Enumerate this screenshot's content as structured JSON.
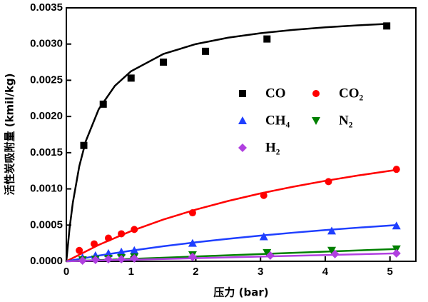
{
  "chart_data": {
    "type": "scatter",
    "x_label": "压力 (bar)",
    "y_label": "活性炭吸附量 (kmil/kg)",
    "xlim": [
      0,
      5.4
    ],
    "xticks": [
      0,
      1,
      2,
      3,
      4,
      5
    ],
    "ylim": [
      0,
      0.0035
    ],
    "yticks": [
      {
        "value": 0,
        "label": "0.0000"
      },
      {
        "value": 0.0005,
        "label": "0.0005"
      },
      {
        "value": 0.001,
        "label": "0.0010"
      },
      {
        "value": 0.0015,
        "label": "0.0015"
      },
      {
        "value": 0.002,
        "label": "0.0020"
      },
      {
        "value": 0.0025,
        "label": "0.0025"
      },
      {
        "value": 0.003,
        "label": "0.0030"
      },
      {
        "value": 0.0035,
        "label": "0.0035"
      }
    ],
    "series": [
      {
        "name": "CO",
        "color": "#000000",
        "marker": "square",
        "x": [
          0.27,
          0.57,
          1.0,
          1.5,
          2.15,
          3.1,
          4.95
        ],
        "values": [
          0.0016,
          0.00217,
          0.00253,
          0.00275,
          0.0029,
          0.00307,
          0.00325
        ],
        "fit_x": [
          0,
          0.05,
          0.1,
          0.2,
          0.3,
          0.5,
          0.75,
          1,
          1.5,
          2,
          2.5,
          3,
          3.5,
          4,
          4.5,
          5
        ],
        "fit_values": [
          0,
          0.000457,
          0.000808,
          0.001313,
          0.001658,
          0.0021,
          0.002423,
          0.002625,
          0.002864,
          0.003,
          0.003088,
          0.00315,
          0.003196,
          0.003231,
          0.003259,
          0.003281
        ]
      },
      {
        "name": "CO₂",
        "color": "#ff0000",
        "marker": "circle",
        "x": [
          0.2,
          0.43,
          0.65,
          0.85,
          1.05,
          1.95,
          3.05,
          4.05,
          5.1
        ],
        "values": [
          0.00015,
          0.00024,
          0.00032,
          0.00038,
          0.00044,
          0.00067,
          0.00091,
          0.0011,
          0.00127
        ],
        "fit_x": [
          0,
          0.5,
          1,
          1.5,
          2,
          2.5,
          3,
          3.5,
          4,
          4.5,
          5,
          5.1
        ],
        "fit_values": [
          0,
          0.000227,
          0.000417,
          0.000577,
          0.000714,
          0.000833,
          0.000938,
          0.001029,
          0.001111,
          0.001184,
          0.00125,
          0.001262
        ]
      },
      {
        "name": "CH₄",
        "color": "#1f3fff",
        "marker": "triangle-up",
        "x": [
          0.25,
          0.45,
          0.65,
          0.85,
          1.05,
          1.95,
          3.05,
          4.1,
          5.1
        ],
        "values": [
          5e-05,
          8e-05,
          0.00011,
          0.00013,
          0.00015,
          0.00025,
          0.00034,
          0.00042,
          0.00049
        ],
        "fit_x": [
          0,
          0.5,
          1,
          1.5,
          2,
          2.5,
          3,
          3.5,
          4,
          4.5,
          5,
          5.1
        ],
        "fit_values": [
          0,
          7.85e-05,
          0.000147,
          0.000208,
          0.000263,
          0.000311,
          0.000355,
          0.000395,
          0.000431,
          0.000464,
          0.000494,
          0.0005
        ]
      },
      {
        "name": "N₂",
        "color": "#008000",
        "marker": "triangle-down",
        "x": [
          0.25,
          0.45,
          0.65,
          0.85,
          1.05,
          1.95,
          3.1,
          4.1,
          5.1
        ],
        "values": [
          2e-05,
          3e-05,
          4e-05,
          5e-05,
          6e-05,
          9e-05,
          0.00012,
          0.00015,
          0.00017
        ],
        "fit_x": [
          0,
          5.1
        ],
        "fit_values": [
          0,
          0.00017
        ]
      },
      {
        "name": "H₂",
        "color": "#b040e0",
        "marker": "diamond",
        "x": [
          0.25,
          0.45,
          0.65,
          0.85,
          1.05,
          1.95,
          3.15,
          4.15,
          5.1
        ],
        "values": [
          1e-05,
          2e-05,
          3e-05,
          3e-05,
          4e-05,
          6e-05,
          8e-05,
          0.0001,
          0.00011
        ],
        "fit_x": [
          0,
          5.1
        ],
        "fit_values": [
          0,
          0.00011
        ]
      }
    ]
  }
}
